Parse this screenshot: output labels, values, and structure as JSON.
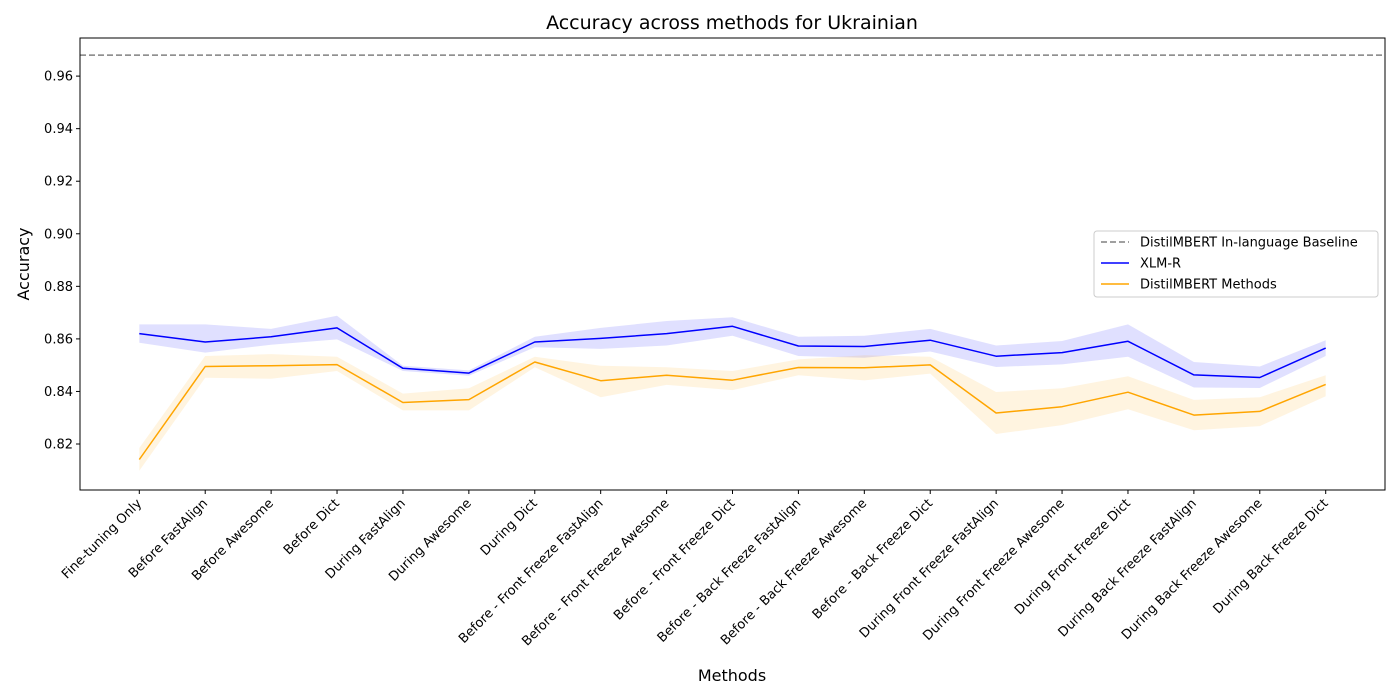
{
  "chart_data": {
    "type": "line",
    "title": "Accuracy across methods for Ukrainian",
    "xlabel": "Methods",
    "ylabel": "Accuracy",
    "categories": [
      "Fine-tuning Only",
      "Before FastAlign",
      "Before Awesome",
      "Before Dict",
      "During FastAlign",
      "During Awesome",
      "During Dict",
      "Before - Front Freeze FastAlign",
      "Before - Front Freeze Awesome",
      "Before - Front Freeze Dict",
      "Before - Back Freeze FastAlign",
      "Before - Back Freeze Awesome",
      "Before - Back Freeze Dict",
      "During Front Freeze FastAlign",
      "During Front Freeze Awesome",
      "During Front Freeze Dict",
      "During Back Freeze FastAlign",
      "During Back Freeze Awesome",
      "During Back Freeze Dict"
    ],
    "ylim": [
      0.8025,
      0.9745
    ],
    "yticks": [
      0.82,
      0.84,
      0.86,
      0.88,
      0.9,
      0.92,
      0.94,
      0.96
    ],
    "ytick_labels": [
      "0.82",
      "0.84",
      "0.86",
      "0.88",
      "0.90",
      "0.92",
      "0.94",
      "0.96"
    ],
    "grid": false,
    "legend_position": "center-right",
    "baseline": {
      "name": "DistilMBERT In-language Baseline",
      "value": 0.968,
      "color": "#808080",
      "style": "dashed"
    },
    "series": [
      {
        "name": "XLM-R",
        "color": "#0000ff",
        "values": [
          0.862,
          0.8588,
          0.8608,
          0.8642,
          0.8488,
          0.847,
          0.8588,
          0.8602,
          0.862,
          0.8648,
          0.8573,
          0.8571,
          0.8595,
          0.8534,
          0.8548,
          0.8591,
          0.8463,
          0.8453,
          0.8565
        ],
        "lower": [
          0.8585,
          0.8548,
          0.8578,
          0.8598,
          0.8478,
          0.846,
          0.8568,
          0.8562,
          0.8575,
          0.8612,
          0.8535,
          0.8528,
          0.8552,
          0.8493,
          0.8503,
          0.8532,
          0.8415,
          0.8413,
          0.8535
        ],
        "upper": [
          0.8655,
          0.8655,
          0.8638,
          0.8688,
          0.8498,
          0.848,
          0.8608,
          0.8642,
          0.8668,
          0.8682,
          0.8608,
          0.8612,
          0.8638,
          0.8575,
          0.8592,
          0.8655,
          0.8512,
          0.8495,
          0.8595
        ]
      },
      {
        "name": "DistilMBERT Methods",
        "color": "#ffa500",
        "values": [
          0.8141,
          0.8495,
          0.8498,
          0.8502,
          0.8358,
          0.8369,
          0.8512,
          0.8441,
          0.8462,
          0.8443,
          0.8491,
          0.849,
          0.8501,
          0.8318,
          0.8342,
          0.8397,
          0.831,
          0.8324,
          0.8427
        ],
        "lower": [
          0.8098,
          0.8452,
          0.8448,
          0.8478,
          0.8328,
          0.8328,
          0.8492,
          0.8378,
          0.8425,
          0.8405,
          0.8462,
          0.8442,
          0.8468,
          0.8238,
          0.8272,
          0.8332,
          0.8252,
          0.8268,
          0.8382
        ],
        "upper": [
          0.8185,
          0.8535,
          0.8542,
          0.8532,
          0.8392,
          0.8412,
          0.8532,
          0.8498,
          0.8492,
          0.8478,
          0.8522,
          0.8538,
          0.8532,
          0.8398,
          0.8412,
          0.8458,
          0.8368,
          0.8378,
          0.8462
        ]
      }
    ]
  }
}
